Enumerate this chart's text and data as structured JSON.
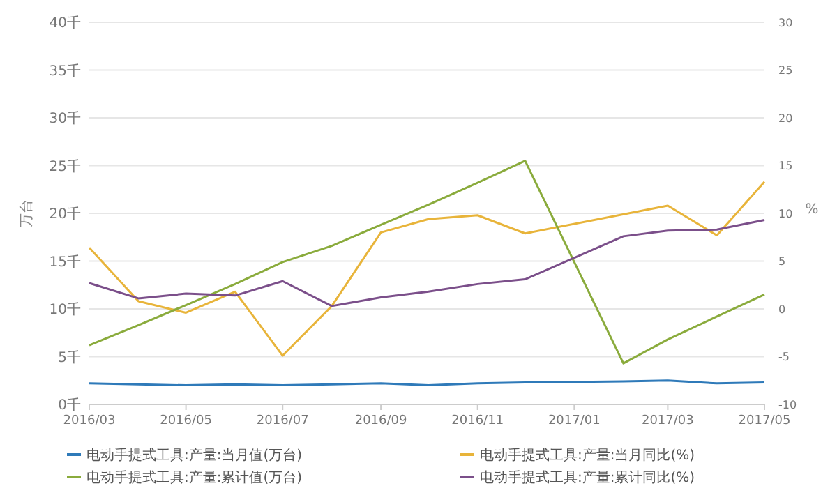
{
  "chart_data": {
    "type": "line",
    "ylabel": "万台",
    "y2label": "%",
    "xlim": [
      "2016-03",
      "2017-05"
    ],
    "xticks": [
      {
        "value": "2016-03",
        "label": "2016/03"
      },
      {
        "value": "2016-05",
        "label": "2016/05"
      },
      {
        "value": "2016-07",
        "label": "2016/07"
      },
      {
        "value": "2016-09",
        "label": "2016/09"
      },
      {
        "value": "2016-11",
        "label": "2016/11"
      },
      {
        "value": "2017-01",
        "label": "2017/01"
      },
      {
        "value": "2017-03",
        "label": "2017/03"
      },
      {
        "value": "2017-05",
        "label": "2017/05"
      }
    ],
    "ylim": [
      0,
      40
    ],
    "yticks": [
      {
        "value": 0,
        "label": "0千"
      },
      {
        "value": 5,
        "label": "5千"
      },
      {
        "value": 10,
        "label": "10千"
      },
      {
        "value": 15,
        "label": "15千"
      },
      {
        "value": 20,
        "label": "20千"
      },
      {
        "value": 25,
        "label": "25千"
      },
      {
        "value": 30,
        "label": "30千"
      },
      {
        "value": 35,
        "label": "35千"
      },
      {
        "value": 40,
        "label": "40千"
      }
    ],
    "y2lim": [
      -10,
      30
    ],
    "y2ticks": [
      -10,
      -5,
      0,
      5,
      10,
      15,
      20,
      25,
      30
    ],
    "grid": "y",
    "legend": "bottom",
    "marker": "none",
    "line_style": "solid",
    "x": [
      "2016-03",
      "2016-04",
      "2016-05",
      "2016-06",
      "2016-07",
      "2016-08",
      "2016-09",
      "2016-10",
      "2016-11",
      "2016-12",
      "2017-02",
      "2017-03",
      "2017-04",
      "2017-05"
    ],
    "series": [
      {
        "name": "电动手提式工具:产量:当月值(万台)",
        "color": "#2f7ab9",
        "values": [
          2.2,
          2.1,
          2.0,
          2.1,
          2.0,
          2.1,
          2.2,
          2.0,
          2.2,
          2.3,
          2.4,
          2.5,
          2.2,
          2.3
        ]
      },
      {
        "name": "电动手提式工具:产量:当月同比(%)",
        "color": "#e8b43a",
        "axis": "y2",
        "values": [
          6.4,
          0.8,
          -0.4,
          1.8,
          -4.9,
          0.3,
          8.0,
          9.4,
          9.8,
          7.9,
          null,
          10.8,
          7.7,
          13.3
        ]
      },
      {
        "name": "电动手提式工具:产量:累计值(万台)",
        "color": "#8aab3c",
        "values": [
          6.2,
          8.3,
          10.4,
          12.6,
          14.9,
          16.6,
          18.8,
          20.9,
          23.2,
          25.5,
          4.3,
          6.8,
          9.2,
          11.5
        ]
      },
      {
        "name": "电动手提式工具:产量:累计同比(%)",
        "color": "#7b4f8a",
        "axis": "y2",
        "values": [
          2.7,
          1.1,
          1.6,
          1.4,
          2.9,
          0.3,
          1.2,
          1.8,
          2.6,
          3.1,
          7.6,
          8.2,
          8.3,
          9.3
        ]
      }
    ]
  }
}
